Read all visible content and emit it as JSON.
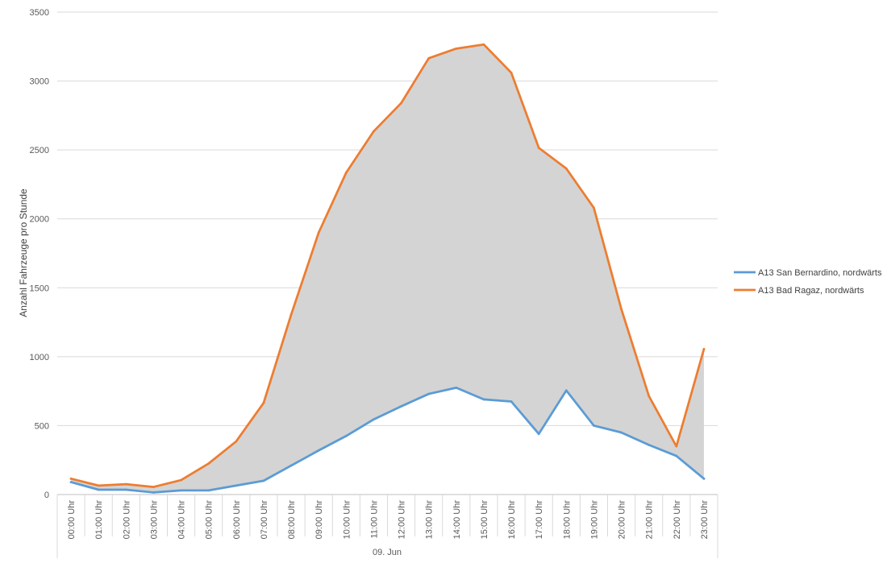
{
  "chart_data": {
    "type": "line",
    "ylabel": "Anzahl Fahrzeuge pro Stunde",
    "xgroup_label": "09. Jun",
    "ylim": [
      0,
      3500
    ],
    "yticks": [
      0,
      500,
      1000,
      1500,
      2000,
      2500,
      3000,
      3500
    ],
    "grid": true,
    "legend_position": "right",
    "fill_between_series": true,
    "fill_color": "#d4d4d4",
    "categories": [
      "00:00 Uhr",
      "01:00 Uhr",
      "02:00 Uhr",
      "03:00 Uhr",
      "04:00 Uhr",
      "05:00 Uhr",
      "06:00 Uhr",
      "07:00 Uhr",
      "08:00 Uhr",
      "09:00 Uhr",
      "10:00 Uhr",
      "11:00 Uhr",
      "12:00 Uhr",
      "13:00 Uhr",
      "14:00 Uhr",
      "15:00 Uhr",
      "16:00 Uhr",
      "17:00 Uhr",
      "18:00 Uhr",
      "19:00 Uhr",
      "20:00 Uhr",
      "21:00 Uhr",
      "22:00 Uhr",
      "23:00 Uhr"
    ],
    "series": [
      {
        "name": "A13 San Bernardino, nordwärts",
        "color": "#5b9bd5",
        "values": [
          90,
          35,
          35,
          15,
          30,
          30,
          65,
          100,
          210,
          320,
          425,
          545,
          640,
          730,
          775,
          690,
          675,
          440,
          755,
          500,
          450,
          360,
          280,
          115
        ]
      },
      {
        "name": "A13 Bad Ragaz, nordwärts",
        "color": "#ed7d31",
        "values": [
          115,
          65,
          75,
          55,
          105,
          225,
          385,
          665,
          1305,
          1900,
          2335,
          2635,
          2840,
          3165,
          3235,
          3265,
          3060,
          2515,
          2365,
          2080,
          1345,
          715,
          350,
          1055
        ]
      }
    ]
  }
}
